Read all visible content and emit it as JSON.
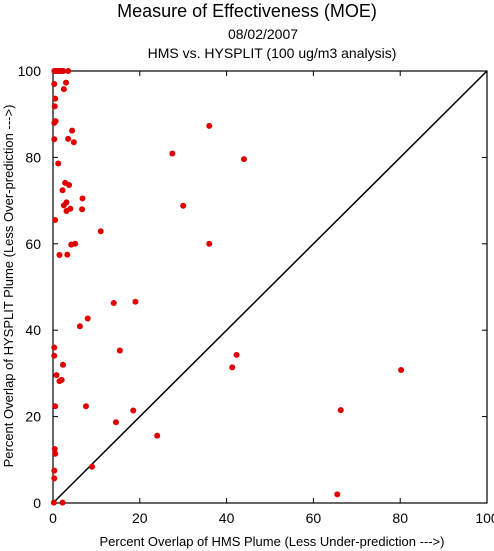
{
  "chart_data": {
    "type": "scatter",
    "title": "Measure of Effectiveness (MOE)",
    "subtitle_date": "08/02/2007",
    "subtitle_analysis": "HMS vs. HYSPLIT  (100 ug/m3 analysis)",
    "xlabel": "Percent Overlap of HMS Plume (Less Under-prediction --->)",
    "ylabel": "Percent Overlap of HYSPLIT Plume (Less Over-prediction --->)",
    "xlim": [
      0,
      100
    ],
    "ylim": [
      0,
      100
    ],
    "xticks": [
      0,
      20,
      40,
      60,
      80,
      100
    ],
    "yticks": [
      0,
      20,
      40,
      60,
      80,
      100
    ],
    "grid": false,
    "legend": "none",
    "reference_line": "y = x (diagonal)",
    "marker_color": "#e00000",
    "series": [
      {
        "points": [
          [
            0.3,
            100
          ],
          [
            0.6,
            100
          ],
          [
            0.9,
            100
          ],
          [
            1.2,
            100
          ],
          [
            1.5,
            100
          ],
          [
            1.8,
            100
          ],
          [
            2.1,
            100
          ],
          [
            2.4,
            100
          ],
          [
            3.5,
            100
          ],
          [
            0.3,
            97.0
          ],
          [
            2.5,
            95.8
          ],
          [
            3.0,
            97.3
          ],
          [
            0.5,
            93.6
          ],
          [
            0.4,
            91.8
          ],
          [
            0.3,
            88.0
          ],
          [
            0.6,
            88.4
          ],
          [
            0.3,
            84.2
          ],
          [
            4.4,
            86.2
          ],
          [
            3.5,
            84.3
          ],
          [
            4.8,
            83.5
          ],
          [
            36.0,
            87.3
          ],
          [
            1.2,
            78.6
          ],
          [
            27.5,
            80.9
          ],
          [
            44.0,
            79.6
          ],
          [
            2.8,
            74.1
          ],
          [
            3.7,
            73.6
          ],
          [
            2.2,
            72.4
          ],
          [
            6.8,
            70.5
          ],
          [
            3.1,
            69.6
          ],
          [
            2.5,
            68.9
          ],
          [
            4.0,
            68.1
          ],
          [
            3.1,
            67.6
          ],
          [
            6.7,
            68.0
          ],
          [
            30.0,
            68.8
          ],
          [
            0.5,
            65.5
          ],
          [
            11.0,
            62.9
          ],
          [
            4.2,
            59.8
          ],
          [
            5.1,
            60.0
          ],
          [
            36.0,
            60.0
          ],
          [
            1.5,
            57.4
          ],
          [
            3.3,
            57.5
          ],
          [
            14.0,
            46.3
          ],
          [
            19.0,
            46.6
          ],
          [
            8.0,
            42.7
          ],
          [
            6.2,
            40.9
          ],
          [
            0.3,
            36.0
          ],
          [
            15.4,
            35.3
          ],
          [
            0.3,
            34.1
          ],
          [
            42.3,
            34.3
          ],
          [
            41.3,
            31.4
          ],
          [
            2.3,
            32.0
          ],
          [
            0.8,
            29.6
          ],
          [
            2.0,
            28.5
          ],
          [
            1.5,
            28.2
          ],
          [
            80.2,
            30.8
          ],
          [
            0.5,
            22.4
          ],
          [
            7.6,
            22.4
          ],
          [
            18.5,
            21.4
          ],
          [
            66.3,
            21.5
          ],
          [
            14.5,
            18.7
          ],
          [
            24.0,
            15.6
          ],
          [
            0.4,
            12.5
          ],
          [
            0.5,
            11.4
          ],
          [
            9.0,
            8.4
          ],
          [
            0.3,
            7.5
          ],
          [
            0.3,
            5.7
          ],
          [
            65.5,
            2.0
          ],
          [
            0.2,
            0.1
          ],
          [
            2.2,
            0.1
          ]
        ]
      }
    ]
  }
}
